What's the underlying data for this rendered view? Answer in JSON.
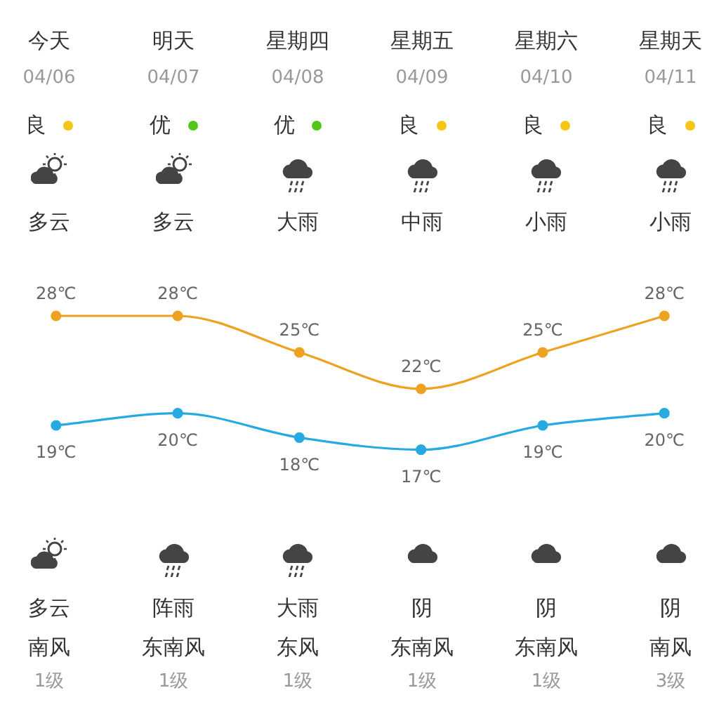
{
  "chart_data": {
    "type": "line",
    "categories": [
      "今天",
      "明天",
      "星期四",
      "星期五",
      "星期六",
      "星期天"
    ],
    "series": [
      {
        "color": "#eea221",
        "values": [
          28,
          28,
          25,
          22,
          25,
          28
        ],
        "value_labels": [
          "28℃",
          "28℃",
          "25℃",
          "22℃",
          "25℃",
          "28℃"
        ]
      },
      {
        "color": "#27a9e1",
        "values": [
          19,
          20,
          18,
          17,
          19,
          20
        ],
        "value_labels": [
          "19℃",
          "20℃",
          "18℃",
          "17℃",
          "19℃",
          "20℃"
        ]
      }
    ],
    "marker": "circle",
    "tick_labels": false,
    "annotations": [
      "04/06",
      "04/07",
      "04/08",
      "04/09",
      "04/10",
      "04/11",
      "良",
      "优",
      "优",
      "良",
      "良",
      "良",
      "多云",
      "多云",
      "大雨",
      "中雨",
      "小雨",
      "小雨",
      "多云",
      "阵雨",
      "大雨",
      "阴",
      "阴",
      "阴",
      "南风",
      "东南风",
      "东风",
      "东南风",
      "东南风",
      "南风",
      "1级",
      "1级",
      "1级",
      "1级",
      "1级",
      "3级"
    ]
  }
}
